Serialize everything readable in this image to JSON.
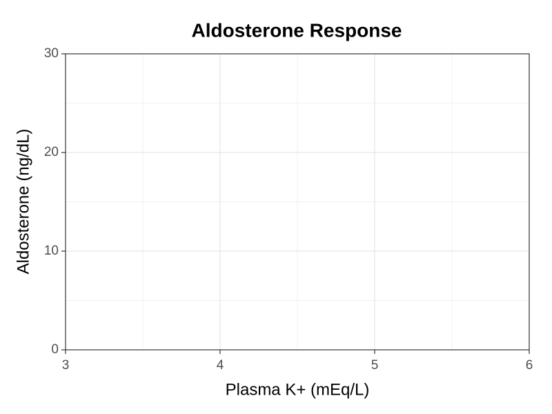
{
  "chart_data": {
    "type": "scatter",
    "title": "Aldosterone Response",
    "x_label": "Plasma K+ (mEq/L)",
    "y_label": "Aldosterone (ng/dL)",
    "xlim": [
      3,
      6
    ],
    "xticks": [
      3,
      4,
      5,
      6
    ],
    "ylim": [
      0,
      30
    ],
    "yticks": [
      0,
      10,
      20,
      30
    ],
    "grid": true
  }
}
